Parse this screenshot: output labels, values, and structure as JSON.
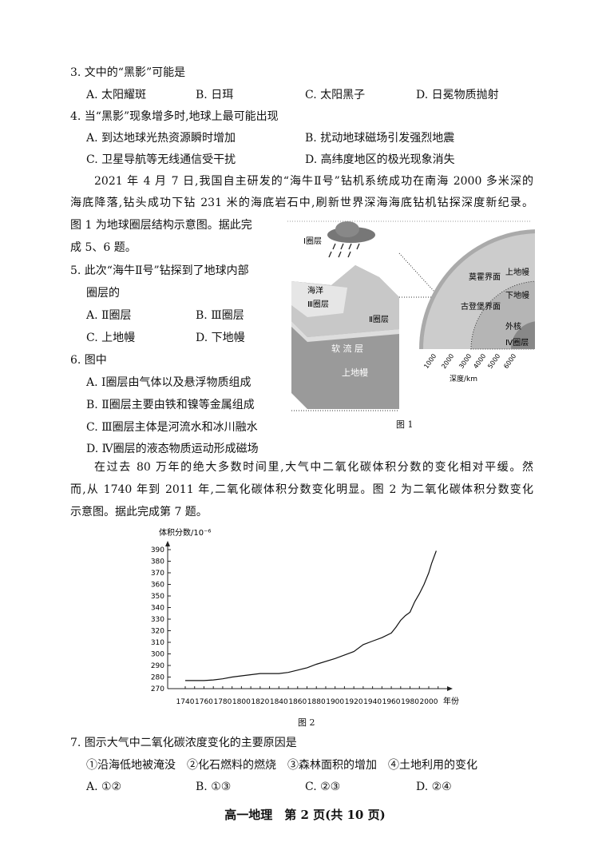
{
  "q3": {
    "stem": "3. 文中的“黑影”可能是",
    "options": [
      "A. 太阳耀斑",
      "B. 日珥",
      "C. 太阳黑子",
      "D. 日冕物质抛射"
    ]
  },
  "q4": {
    "stem": "4. 当“黑影”现象增多时,地球上最可能出现",
    "options": [
      "A. 到达地球光热资源瞬时增加",
      "B. 扰动地球磁场引发强烈地震",
      "C. 卫星导航等无线通信受干扰",
      "D. 高纬度地区的极光现象消失"
    ]
  },
  "passage1": [
    "2021 年 4 月 7 日,我国自主研发的“海牛Ⅱ号”钻机系统成功在南海 2000 多米深的",
    "海底降落,钻头成功下钻 231 米的海底岩石中,刷新世界深海海底钻机钻探深度新纪录。",
    "图 1 为地球圈层结构示意图。据此完",
    "成 5、6 题。"
  ],
  "q5": {
    "stem": [
      "5. 此次“海牛Ⅱ号”钻探到了地球内部",
      "圈层的"
    ],
    "options": [
      "A. Ⅱ圈层",
      "B. Ⅲ圈层",
      "C. 上地幔",
      "D. 下地幔"
    ]
  },
  "q6": {
    "stem": "6. 图中",
    "options": [
      "A. Ⅰ圈层由气体以及悬浮物质组成",
      "B. Ⅱ圈层主要由铁和镍等金属组成",
      "C. Ⅲ圈层主体是河流水和冰川融水",
      "D. Ⅳ圈层的液态物质运动形成磁场"
    ]
  },
  "figure1": {
    "caption": "图 1",
    "labels": {
      "layer1": "Ⅰ圈层",
      "ocean": "海洋",
      "layer3": "Ⅲ圈层",
      "layer2": "Ⅱ圈层",
      "asthenosphere": "软 流 层",
      "upper_mantle_block": "上地幔",
      "moho": "莫霍界面",
      "gutenberg": "古登堡界面",
      "upper_mantle": "上地幔",
      "lower_mantle": "下地幔",
      "outer_core": "外核",
      "layer4": "Ⅳ圈层",
      "depth_label": "深度/km"
    },
    "depth_ticks": [
      "1000",
      "2000",
      "3000",
      "4000",
      "5000",
      "6000"
    ]
  },
  "passage2": [
    "在过去 80 万年的绝大多数时间里,大气中二氧化碳体积分数的变化相对平缓。然",
    "而,从 1740 年到 2011 年,二氧化碳体积分数变化明显。图 2 为二氧化碳体积分数变化",
    "示意图。据此完成第 7 题。"
  ],
  "chart_data": {
    "type": "line",
    "title": "",
    "caption": "图 2",
    "ylabel": "体积分数/10⁻⁶",
    "xlabel": "年份",
    "xlim": [
      1740,
      2010
    ],
    "ylim": [
      270,
      390
    ],
    "xticks": [
      1740,
      1760,
      1780,
      1800,
      1820,
      1840,
      1860,
      1880,
      1900,
      1920,
      1940,
      1960,
      1980,
      2000
    ],
    "yticks": [
      270,
      280,
      290,
      300,
      310,
      320,
      330,
      340,
      350,
      360,
      370,
      380,
      390
    ],
    "x": [
      1740,
      1760,
      1770,
      1780,
      1790,
      1800,
      1820,
      1840,
      1850,
      1860,
      1870,
      1880,
      1900,
      1920,
      1930,
      1940,
      1950,
      1960,
      1965,
      1970,
      1975,
      1980,
      1985,
      1990,
      1995,
      2000,
      2003,
      2008
    ],
    "y": [
      277,
      277,
      277.5,
      278.5,
      280,
      281,
      283,
      283,
      284,
      286,
      288,
      291,
      296,
      302,
      308,
      311,
      314,
      318,
      323,
      329,
      333,
      336,
      345,
      352,
      360,
      370,
      378,
      389
    ],
    "grid": false
  },
  "q7": {
    "stem": "7. 图示大气中二氧化碳浓度变化的主要原因是",
    "choices": "①沿海低地被淹没　②化石燃料的燃烧　③森林面积的增加　④土地利用的变化",
    "options": [
      "A. ①②",
      "B. ①③",
      "C. ②③",
      "D. ②④"
    ]
  },
  "footer": "高一地理　第 2 页(共 10 页)"
}
